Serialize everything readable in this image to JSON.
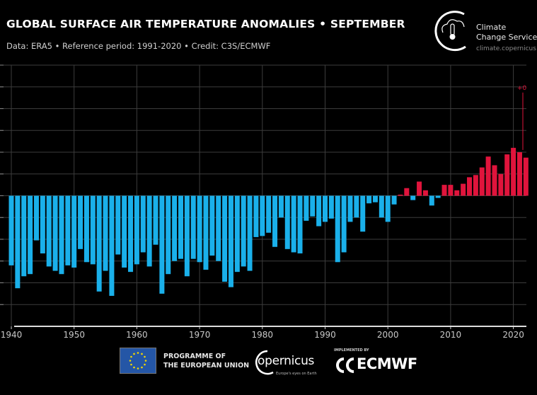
{
  "header": {
    "title": "GLOBAL SURFACE AIR TEMPERATURE ANOMALIES • SEPTEMBER",
    "subtitle": "Data: ERA5 • Reference period: 1991-2020 • Credit: C3S/ECMWF"
  },
  "logo_c3s": {
    "line1": "Climate",
    "line2": "Change Service",
    "url": "climate.copernicus"
  },
  "footer": {
    "eu_line1": "PROGRAMME OF",
    "eu_line2": "THE EUROPEAN UNION",
    "copernicus": "opernicus",
    "copernicus_tagline": "Europe's eyes on Earth",
    "implemented_by": "IMPLEMENTED BY",
    "ecmwf": "ECMWF"
  },
  "colors": {
    "negative": "#1ab0ea",
    "positive": "#e0143c",
    "background": "#000000",
    "grid": "#3a3a3a"
  },
  "chart_data": {
    "type": "bar",
    "title": "GLOBAL SURFACE AIR TEMPERATURE ANOMALIES • SEPTEMBER",
    "xlabel": "",
    "ylabel": "",
    "xlim": [
      1938.2,
      2022.2
    ],
    "ylim": [
      -1.2,
      1.2
    ],
    "grid": true,
    "xticks": [
      1940,
      1950,
      1960,
      1970,
      1980,
      1990,
      2000,
      2010,
      2020
    ],
    "annotation": {
      "text": "+0",
      "value": 1.0
    },
    "x": [
      1940,
      1941,
      1942,
      1943,
      1944,
      1945,
      1946,
      1947,
      1948,
      1949,
      1950,
      1951,
      1952,
      1953,
      1954,
      1955,
      1956,
      1957,
      1958,
      1959,
      1960,
      1961,
      1962,
      1963,
      1964,
      1965,
      1966,
      1967,
      1968,
      1969,
      1970,
      1971,
      1972,
      1973,
      1974,
      1975,
      1976,
      1977,
      1978,
      1979,
      1980,
      1981,
      1982,
      1983,
      1984,
      1985,
      1986,
      1987,
      1988,
      1989,
      1990,
      1991,
      1992,
      1993,
      1994,
      1995,
      1996,
      1997,
      1998,
      1999,
      2000,
      2001,
      2002,
      2003,
      2004,
      2005,
      2006,
      2007,
      2008,
      2009,
      2010,
      2011,
      2012,
      2013,
      2014,
      2015,
      2016,
      2017,
      2018,
      2019,
      2020,
      2021,
      2022
    ],
    "values": [
      -0.64,
      -0.85,
      -0.74,
      -0.72,
      -0.41,
      -0.53,
      -0.65,
      -0.69,
      -0.72,
      -0.64,
      -0.66,
      -0.49,
      -0.61,
      -0.63,
      -0.88,
      -0.69,
      -0.92,
      -0.54,
      -0.66,
      -0.7,
      -0.63,
      -0.52,
      -0.65,
      -0.45,
      -0.9,
      -0.72,
      -0.6,
      -0.58,
      -0.74,
      -0.58,
      -0.61,
      -0.68,
      -0.55,
      -0.6,
      -0.79,
      -0.84,
      -0.7,
      -0.65,
      -0.69,
      -0.38,
      -0.37,
      -0.34,
      -0.47,
      -0.2,
      -0.49,
      -0.52,
      -0.53,
      -0.23,
      -0.19,
      -0.28,
      -0.24,
      -0.21,
      -0.61,
      -0.52,
      -0.24,
      -0.2,
      -0.33,
      -0.07,
      -0.06,
      -0.2,
      -0.24,
      -0.08,
      0.01,
      0.07,
      -0.04,
      0.13,
      0.05,
      -0.09,
      -0.02,
      0.1,
      0.1,
      0.05,
      0.11,
      0.17,
      0.19,
      0.26,
      0.36,
      0.28,
      0.2,
      0.38,
      0.44,
      0.4,
      0.35
    ]
  }
}
